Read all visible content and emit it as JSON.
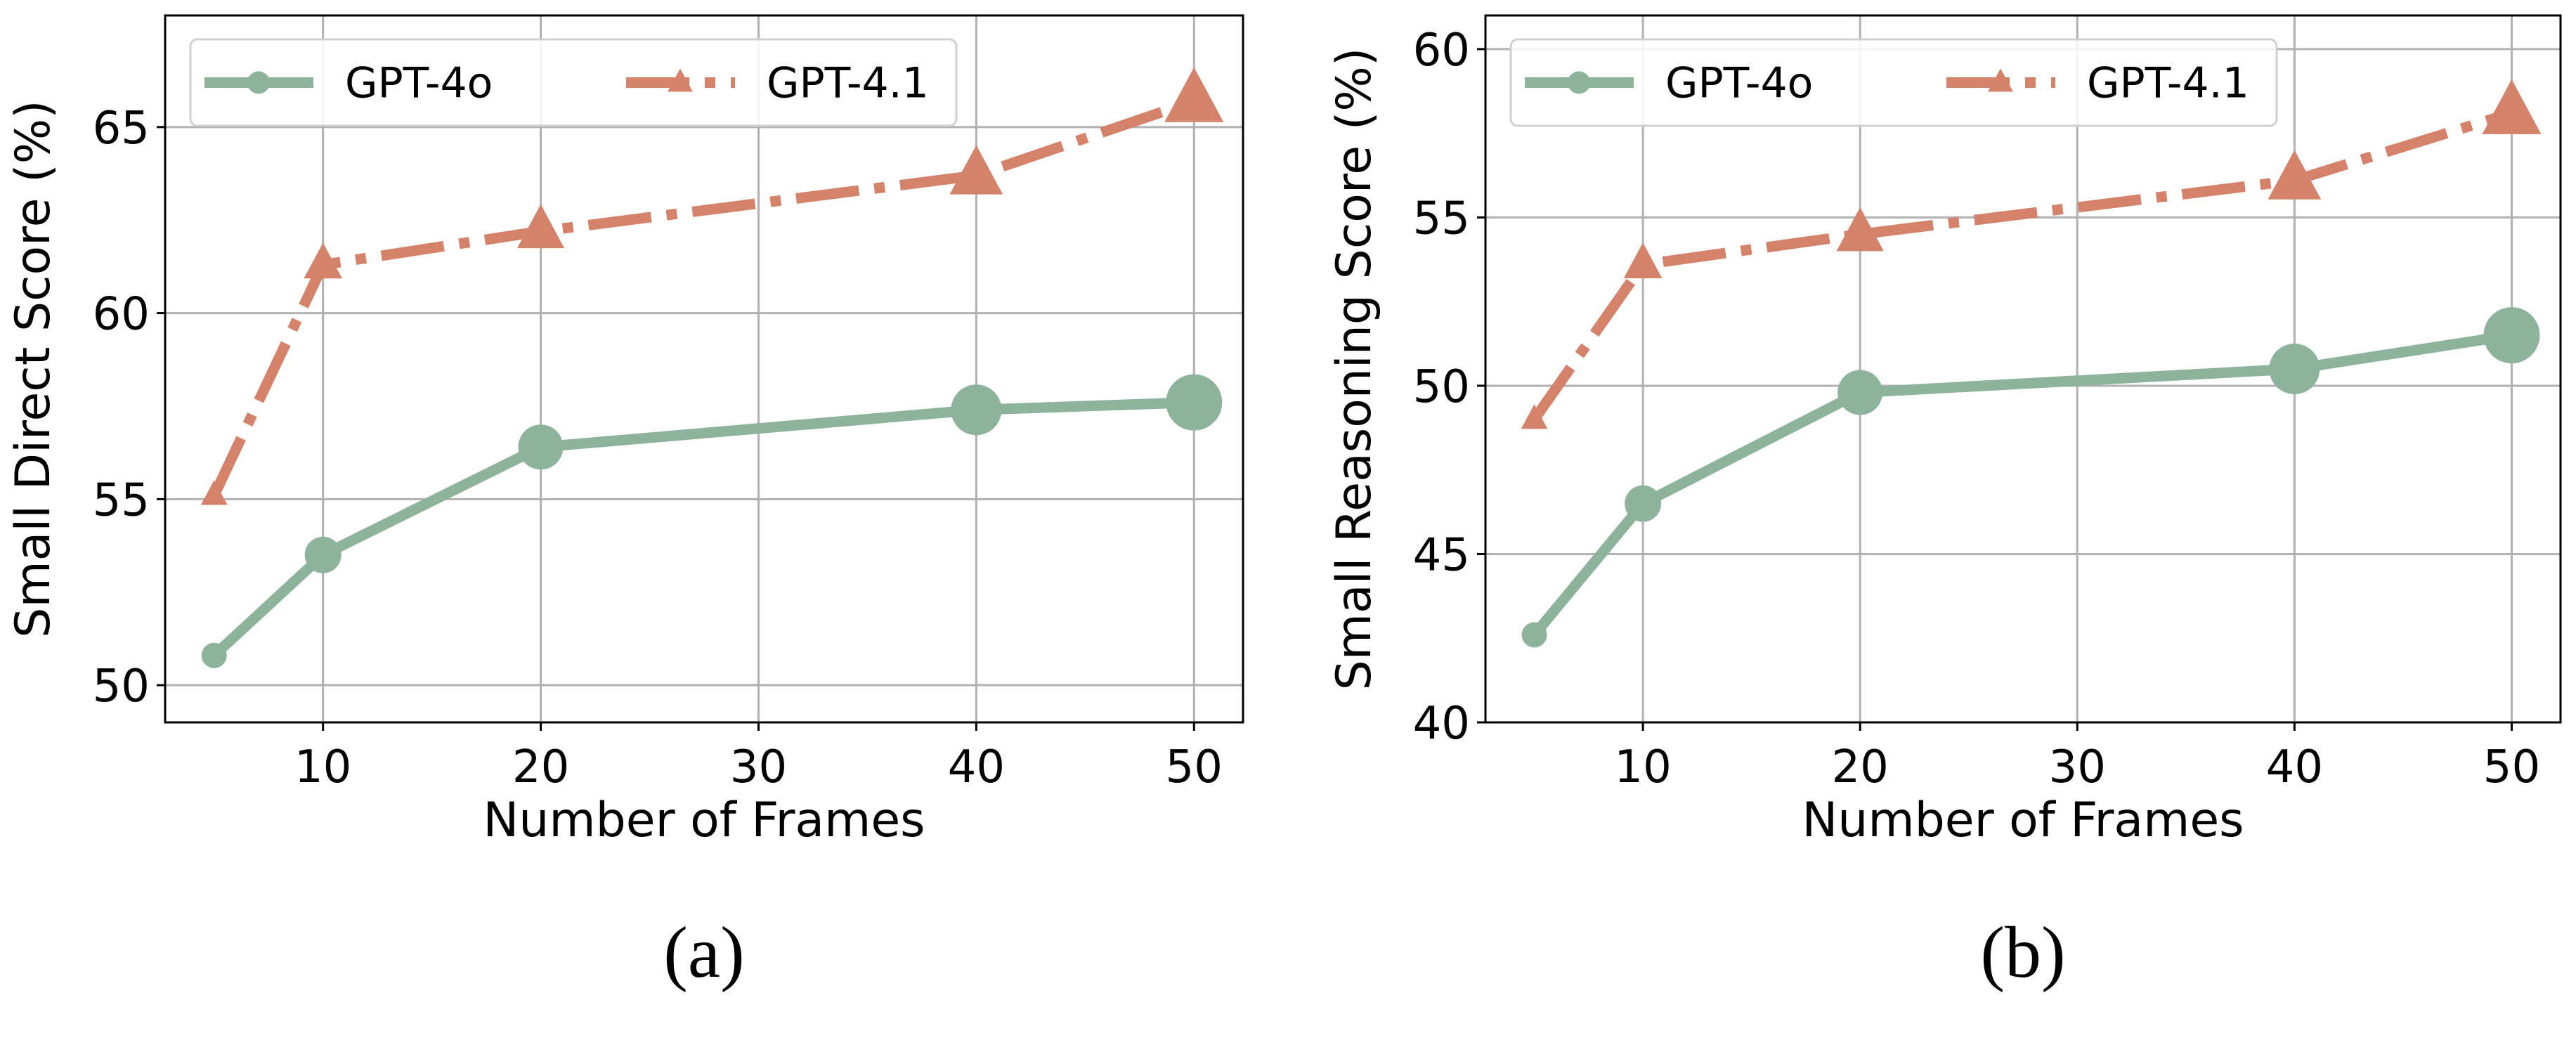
{
  "colors": {
    "GPT-4o": "#8DB39C",
    "GPT-4.1": "#D4826A",
    "grid": "#b0b0b0"
  },
  "chart_data": [
    {
      "type": "line",
      "caption": "(a)",
      "xlabel": "Number of Frames",
      "ylabel": "Small Direct Score (%)",
      "x": [
        5,
        10,
        20,
        40,
        50
      ],
      "xticks": [
        10,
        20,
        30,
        40,
        50
      ],
      "yticks": [
        50,
        55,
        60,
        65
      ],
      "xlim": [
        2.75,
        52.25
      ],
      "ylim": [
        49,
        68
      ],
      "grid": true,
      "legend": "top-left",
      "series": [
        {
          "name": "GPT-4o",
          "marker": "circle",
          "linestyle": "solid",
          "values": [
            50.8,
            53.5,
            56.4,
            57.4,
            57.6
          ]
        },
        {
          "name": "GPT-4.1",
          "marker": "triangle",
          "linestyle": "dashdot",
          "values": [
            55.1,
            61.3,
            62.2,
            63.7,
            65.7
          ]
        }
      ]
    },
    {
      "type": "line",
      "caption": "(b)",
      "xlabel": "Number of Frames",
      "ylabel": "Small Reasoning Score (%)",
      "x": [
        5,
        10,
        20,
        40,
        50
      ],
      "xticks": [
        10,
        20,
        30,
        40,
        50
      ],
      "yticks": [
        40,
        45,
        50,
        55,
        60
      ],
      "xlim": [
        2.75,
        52.25
      ],
      "ylim": [
        40,
        61
      ],
      "grid": true,
      "legend": "top-left",
      "series": [
        {
          "name": "GPT-4o",
          "marker": "circle",
          "linestyle": "solid",
          "values": [
            42.6,
            46.5,
            49.8,
            50.5,
            51.5
          ]
        },
        {
          "name": "GPT-4.1",
          "marker": "triangle",
          "linestyle": "dashdot",
          "values": [
            49.0,
            53.6,
            54.5,
            56.1,
            58.1
          ]
        }
      ]
    }
  ]
}
